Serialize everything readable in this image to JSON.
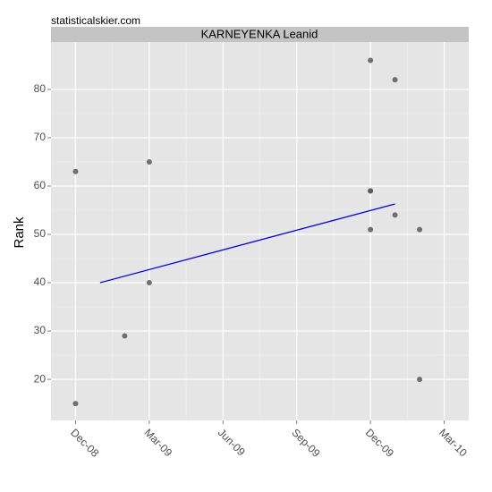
{
  "chart_data": {
    "type": "scatter",
    "title": "KARNEYENKA Leanid",
    "source": "statisticalskier.com",
    "y_label": "Rank",
    "x": [
      "2008-12",
      "2008-12",
      "2009-02",
      "2009-03",
      "2009-03",
      "2009-12",
      "2009-12",
      "2009-12",
      "2009-12",
      "2010-01",
      "2010-01",
      "2010-02",
      "2010-02"
    ],
    "values": [
      15,
      63,
      29,
      40,
      65,
      86,
      59,
      51,
      59,
      82,
      54,
      20,
      51
    ],
    "color": "#595959",
    "trend": {
      "x": [
        "2009-01",
        "2010-01"
      ],
      "values": [
        40,
        56.3
      ],
      "color": "#0000ff"
    },
    "xlim": [
      "2008-11",
      "2010-04"
    ],
    "xticks": [
      {
        "value": "2008-12",
        "label": "Dec-08"
      },
      {
        "value": "2009-03",
        "label": "Mar-09"
      },
      {
        "value": "2009-06",
        "label": "Jun-09"
      },
      {
        "value": "2009-09",
        "label": "Sep-09"
      },
      {
        "value": "2009-12",
        "label": "Dec-09"
      },
      {
        "value": "2010-03",
        "label": "Mar-10"
      }
    ],
    "ylim": [
      11.5,
      89.8
    ],
    "yticks": [
      20,
      30,
      40,
      50,
      60,
      70,
      80
    ],
    "grid": true
  }
}
